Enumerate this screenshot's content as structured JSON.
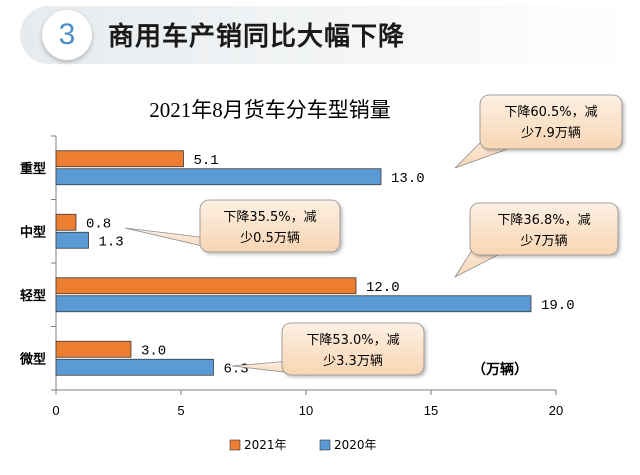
{
  "header": {
    "number": "3",
    "title": "商用车产销同比大幅下降"
  },
  "chart_data": {
    "type": "bar",
    "orientation": "horizontal",
    "title": "2021年8月货车分车型销量",
    "unit_label": "（万辆）",
    "categories": [
      "重型",
      "中型",
      "轻型",
      "微型"
    ],
    "series": [
      {
        "name": "2021年",
        "color": "#ed7d31",
        "values": [
          5.1,
          0.8,
          12.0,
          3.0
        ],
        "labels": [
          "5.1",
          "0.8",
          "12.0",
          "3.0"
        ]
      },
      {
        "name": "2020年",
        "color": "#5b9bd5",
        "values": [
          13.0,
          1.3,
          19.0,
          6.3
        ],
        "labels": [
          "13.0",
          "1.3",
          "19.0",
          "6.3"
        ]
      }
    ],
    "xlim": [
      0,
      20
    ],
    "xticks": [
      "0",
      "5",
      "10",
      "15",
      "20"
    ],
    "grid": false,
    "legend_position": "bottom",
    "annotations": [
      {
        "category": "重型",
        "line1": "下降60.5%，减",
        "line2": "少7.9万辆"
      },
      {
        "category": "中型",
        "line1": "下降35.5%，减",
        "line2": "少0.5万辆"
      },
      {
        "category": "轻型",
        "line1": "下降36.8%，减",
        "line2": "少7万辆"
      },
      {
        "category": "微型",
        "line1": "下降53.0%，减",
        "line2": "少3.3万辆"
      }
    ]
  }
}
